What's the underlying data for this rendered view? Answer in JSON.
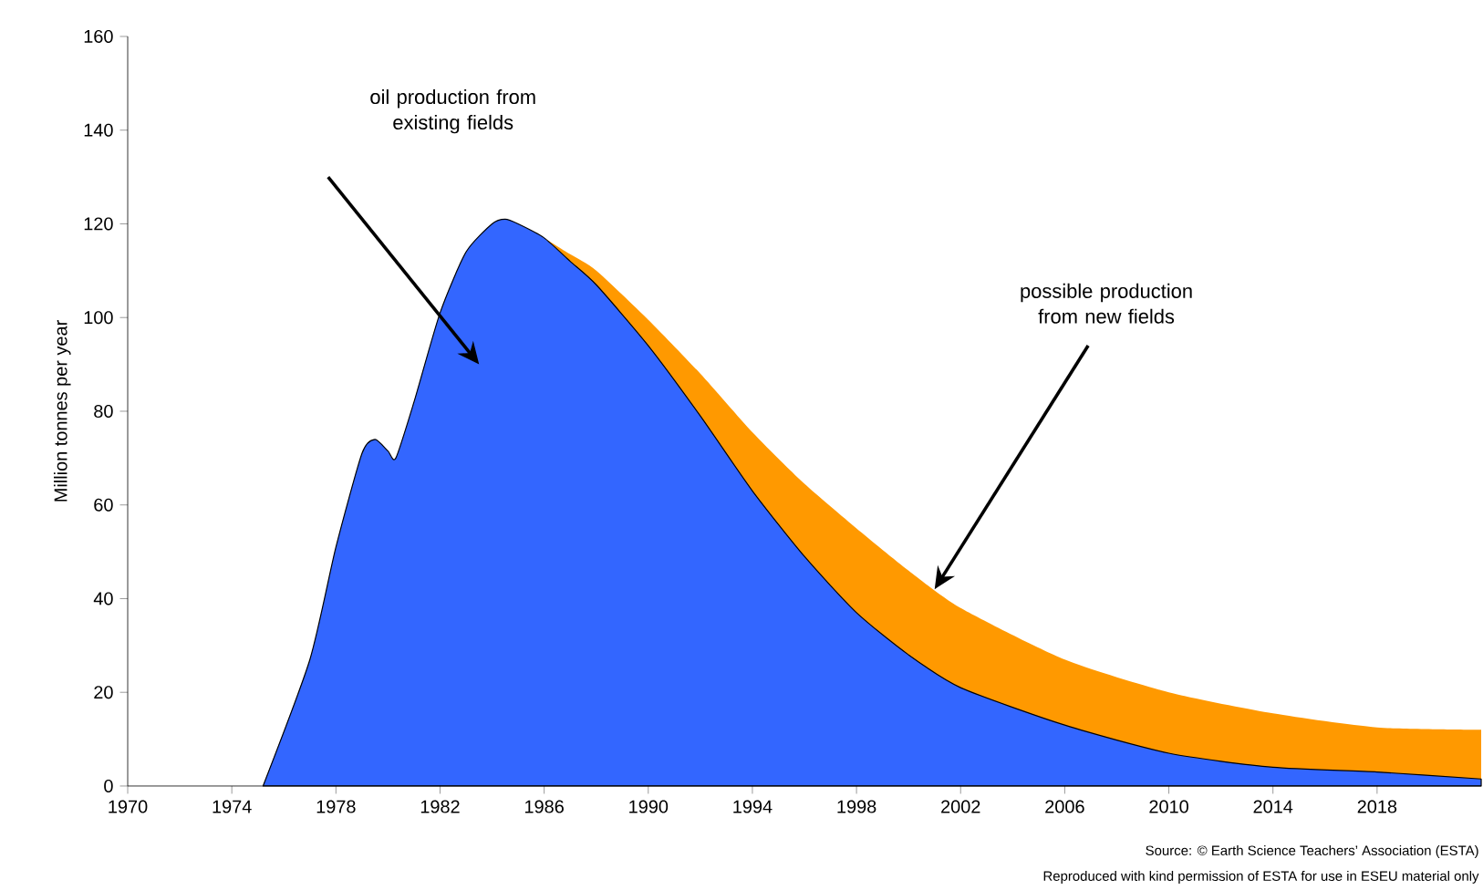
{
  "chart_data": {
    "type": "area",
    "stacked": false,
    "ylabel": "Million tonnes per year",
    "x": [
      1975.2,
      1977,
      1978,
      1979,
      1979.5,
      1980,
      1980.3,
      1981,
      1982,
      1983,
      1984,
      1984.5,
      1985,
      1986,
      1987,
      1988,
      1990,
      1992,
      1994,
      1996,
      1998,
      2000,
      2002,
      2006,
      2010,
      2014,
      2018,
      2022
    ],
    "series": [
      {
        "color": "#3366ff",
        "values": [
          0,
          27,
          51,
          71,
          74,
          71.5,
          70,
          82,
          101,
          114,
          120,
          121,
          120,
          117,
          112,
          107,
          94,
          79,
          63,
          49,
          37,
          28,
          21,
          13,
          7,
          4,
          3,
          1.5
        ]
      },
      {
        "color": "#ff9900",
        "x": [
          1986,
          1987,
          1988,
          1990,
          1992,
          1994,
          1996,
          1998,
          2000,
          2002,
          2006,
          2010,
          2014,
          2018,
          2022
        ],
        "values": [
          117,
          113.5,
          110,
          99.5,
          88,
          75.5,
          64.5,
          55,
          46,
          38,
          27,
          20,
          15.5,
          12.5,
          12
        ]
      }
    ],
    "xlim": [
      1970,
      2022
    ],
    "ylim": [
      0,
      160
    ],
    "xticks": [
      1970,
      1974,
      1978,
      1982,
      1986,
      1990,
      1994,
      1998,
      2002,
      2006,
      2010,
      2014,
      2018
    ],
    "yticks": [
      0,
      20,
      40,
      60,
      80,
      100,
      120,
      140,
      160
    ],
    "grid": false,
    "annotations": [
      "oil production from existing fields",
      {
        "text": "possible production from new fields",
        "x": 2001,
        "y": 42
      },
      "Source: © Earth Science Teachers’ Association (ESTA)",
      "Reproduced with kind permission of ESTA for use in ESEU material only"
    ]
  }
}
